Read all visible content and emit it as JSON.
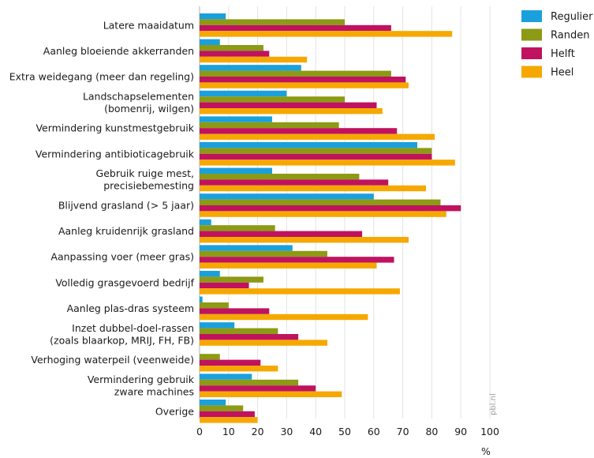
{
  "chart_data": {
    "type": "bar",
    "orientation": "horizontal",
    "categories": [
      [
        "Latere maaidatum"
      ],
      [
        "Aanleg bloeiende akkerranden"
      ],
      [
        "Extra weidegang (meer dan regeling)"
      ],
      [
        "Landschapselementen",
        "(bomenrij, wilgen)"
      ],
      [
        "Vermindering kunstmestgebruik"
      ],
      [
        "Vermindering antibioticagebruik"
      ],
      [
        "Gebruik ruige mest,",
        "precisiebemesting"
      ],
      [
        "Blijvend grasland (> 5 jaar)"
      ],
      [
        "Aanleg kruidenrijk grasland"
      ],
      [
        "Aanpassing voer (meer gras)"
      ],
      [
        "Volledig grasgevoerd bedrijf"
      ],
      [
        "Aanleg plas-dras systeem"
      ],
      [
        "Inzet dubbel-doel-rassen",
        "(zoals blaarkop, MRIJ, FH, FB)"
      ],
      [
        "Verhoging waterpeil (veenweide)"
      ],
      [
        "Vermindering gebruik",
        "zware machines"
      ],
      [
        "Overige"
      ]
    ],
    "series": [
      {
        "name": "Regulier",
        "color": "#1aa0dc",
        "values": [
          9,
          7,
          35,
          30,
          25,
          75,
          25,
          60,
          4,
          32,
          7,
          1,
          12,
          0,
          18,
          9
        ]
      },
      {
        "name": "Randen",
        "color": "#8c9a14",
        "values": [
          50,
          22,
          66,
          50,
          48,
          80,
          55,
          83,
          26,
          44,
          22,
          10,
          27,
          7,
          34,
          15
        ]
      },
      {
        "name": "Helft",
        "color": "#c0125f",
        "values": [
          66,
          24,
          71,
          61,
          68,
          80,
          65,
          90,
          56,
          67,
          17,
          24,
          34,
          21,
          40,
          19
        ]
      },
      {
        "name": "Heel",
        "color": "#f6a800",
        "values": [
          87,
          37,
          72,
          63,
          81,
          88,
          78,
          85,
          72,
          61,
          69,
          58,
          44,
          27,
          49,
          20
        ]
      }
    ],
    "xlim": [
      0,
      100
    ],
    "xticks": [
      "0",
      "10",
      "20",
      "30",
      "40",
      "50",
      "60",
      "70",
      "80",
      "90",
      "100"
    ],
    "xlabel": "%",
    "grid": "vertical",
    "legend_position": "right",
    "source_note": "pbl.nl"
  }
}
